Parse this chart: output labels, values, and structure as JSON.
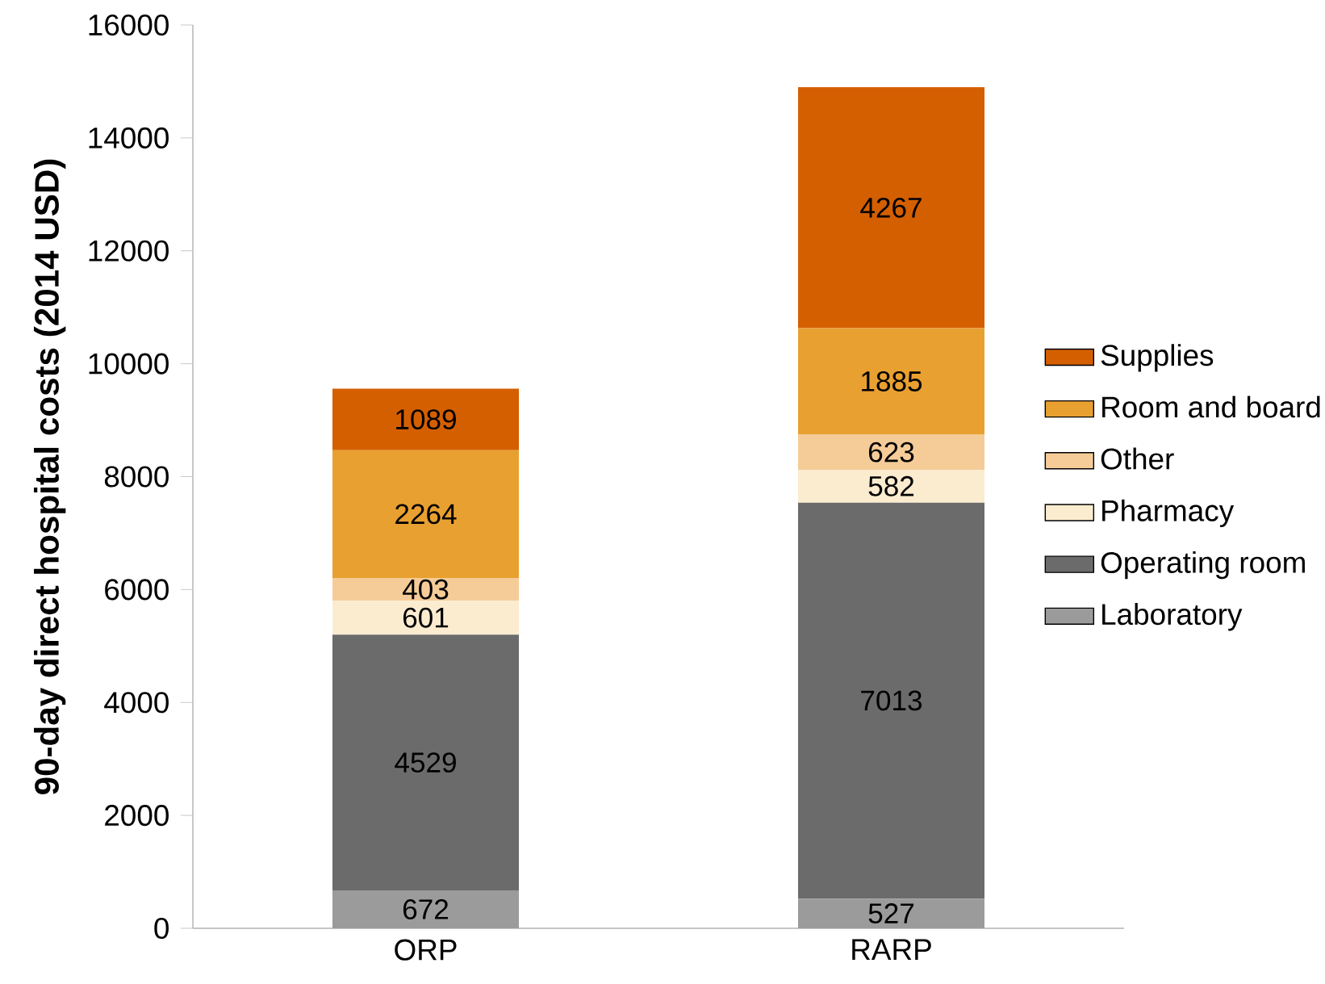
{
  "chart_data": {
    "type": "bar",
    "stacked": true,
    "ylabel": "90-day direct hospital costs (2014 USD)",
    "categories": [
      "ORP",
      "RARP"
    ],
    "series": [
      {
        "name": "Laboratory",
        "color": "#9b9b9b",
        "values": [
          672,
          527
        ]
      },
      {
        "name": "Operating room",
        "color": "#6b6b6b",
        "values": [
          4529,
          7013
        ]
      },
      {
        "name": "Pharmacy",
        "color": "#fbecd0",
        "values": [
          601,
          582
        ]
      },
      {
        "name": "Other",
        "color": "#f5cc98",
        "values": [
          403,
          623
        ]
      },
      {
        "name": "Room and board",
        "color": "#e8a030",
        "values": [
          2264,
          1885
        ]
      },
      {
        "name": "Supplies",
        "color": "#d45f00",
        "values": [
          1089,
          4267
        ]
      }
    ],
    "ylim": [
      0,
      16000
    ],
    "yticks": [
      0,
      2000,
      4000,
      6000,
      8000,
      10000,
      12000,
      14000,
      16000
    ],
    "data_labels": true,
    "legend": "right"
  }
}
